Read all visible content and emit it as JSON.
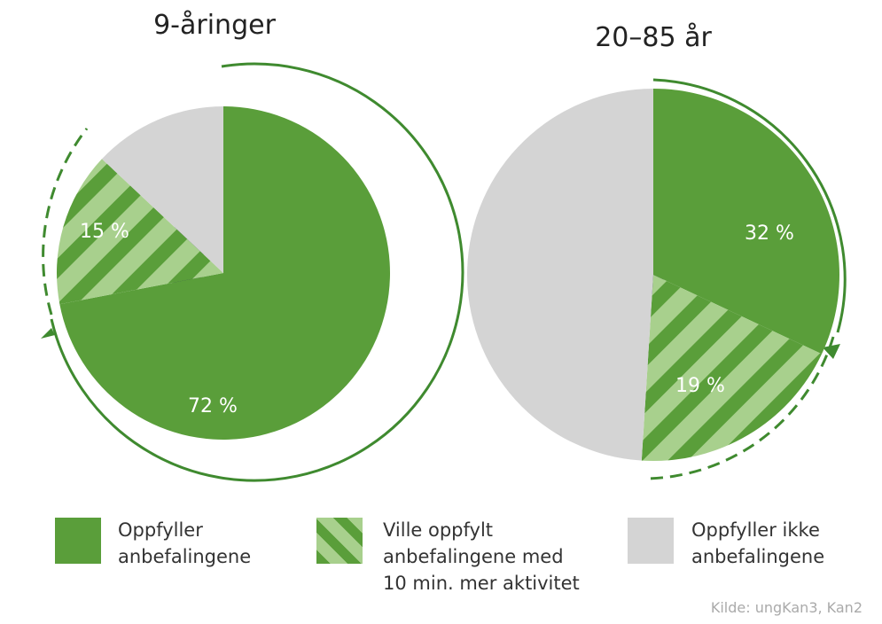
{
  "chart_data": [
    {
      "type": "pie",
      "title": "9-åringer",
      "categories": [
        "Oppfyller anbefalingene",
        "Ville oppfylt anbefalingene med 10 min. mer aktivitet",
        "Oppfyller ikke anbefalingene"
      ],
      "values": [
        72,
        15,
        13
      ],
      "value_labels": [
        "72 %",
        "15 %",
        null
      ],
      "colors": [
        "#5a9e3a",
        "#a8d08d",
        "#d4d4d4"
      ],
      "hatch": [
        false,
        true,
        false
      ]
    },
    {
      "type": "pie",
      "title": "20–85 år",
      "values": [
        32,
        19,
        49
      ],
      "value_labels": [
        "32 %",
        "19 %",
        null
      ],
      "colors": [
        "#5a9e3a",
        "#a8d08d",
        "#d4d4d4"
      ],
      "hatch": [
        false,
        true,
        false
      ]
    }
  ],
  "source": "Kilde: ungKan3, Kan2"
}
